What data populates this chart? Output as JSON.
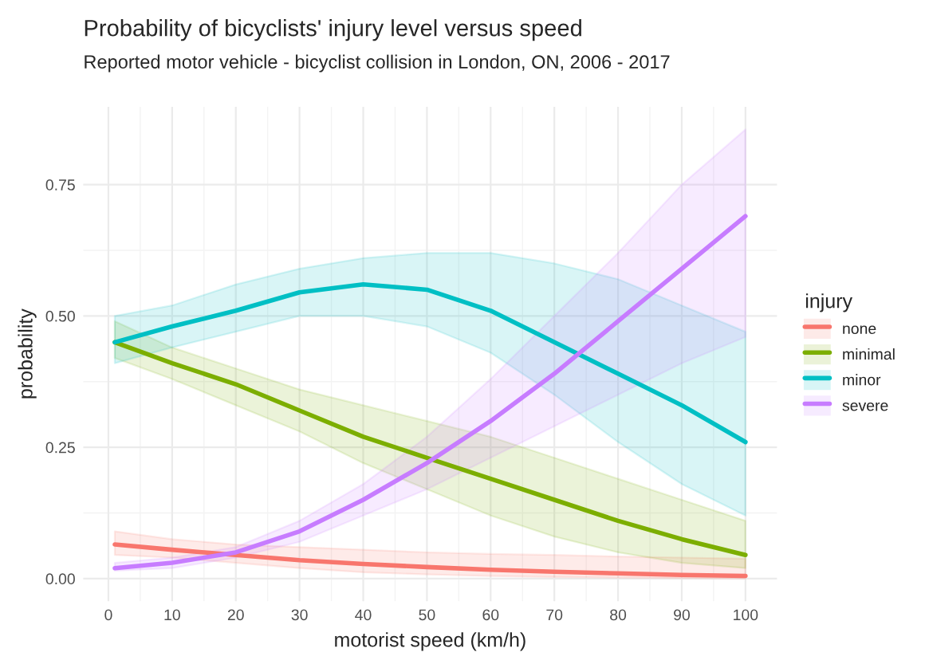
{
  "chart_data": {
    "type": "line",
    "title": "Probability of bicyclists' injury level versus speed",
    "subtitle": "Reported motor vehicle - bicyclist collision in London, ON, 2006 - 2017",
    "xlabel": "motorist speed (km/h)",
    "ylabel": "probability",
    "legend_title": "injury",
    "legend": "right",
    "grid": true,
    "x": [
      1,
      10,
      20,
      30,
      40,
      50,
      60,
      70,
      80,
      90,
      100
    ],
    "xlim": [
      -3.95,
      104.95
    ],
    "ylim": [
      -0.043,
      0.898
    ],
    "xticks": [
      0,
      10,
      20,
      30,
      40,
      50,
      60,
      70,
      80,
      90,
      100
    ],
    "yticks": [
      {
        "value": 0,
        "label": "0.00"
      },
      {
        "value": 0.25,
        "label": "0.25"
      },
      {
        "value": 0.5,
        "label": "0.50"
      },
      {
        "value": 0.75,
        "label": "0.75"
      }
    ],
    "series": [
      {
        "name": "none",
        "color": "#f8766d",
        "values": [
          0.065,
          0.055,
          0.045,
          0.035,
          0.028,
          0.022,
          0.017,
          0.013,
          0.01,
          0.007,
          0.005
        ],
        "lower": [
          0.045,
          0.04,
          0.03,
          0.02,
          0.012,
          0.008,
          0.005,
          0.003,
          0.002,
          0.001,
          0.0
        ],
        "upper": [
          0.09,
          0.075,
          0.065,
          0.06,
          0.055,
          0.05,
          0.047,
          0.045,
          0.042,
          0.04,
          0.038
        ]
      },
      {
        "name": "minimal",
        "color": "#7cae00",
        "values": [
          0.45,
          0.41,
          0.37,
          0.32,
          0.27,
          0.23,
          0.19,
          0.15,
          0.11,
          0.075,
          0.045
        ],
        "lower": [
          0.42,
          0.38,
          0.33,
          0.28,
          0.22,
          0.17,
          0.12,
          0.08,
          0.05,
          0.03,
          0.02
        ],
        "upper": [
          0.49,
          0.44,
          0.4,
          0.36,
          0.33,
          0.3,
          0.27,
          0.23,
          0.19,
          0.15,
          0.11
        ]
      },
      {
        "name": "minor",
        "color": "#00bfc4",
        "values": [
          0.45,
          0.48,
          0.51,
          0.545,
          0.56,
          0.55,
          0.51,
          0.45,
          0.39,
          0.33,
          0.26
        ],
        "lower": [
          0.41,
          0.44,
          0.47,
          0.5,
          0.5,
          0.48,
          0.43,
          0.35,
          0.26,
          0.18,
          0.12
        ],
        "upper": [
          0.5,
          0.52,
          0.56,
          0.59,
          0.61,
          0.62,
          0.62,
          0.6,
          0.57,
          0.52,
          0.47
        ]
      },
      {
        "name": "severe",
        "color": "#c77cff",
        "values": [
          0.02,
          0.03,
          0.05,
          0.09,
          0.15,
          0.22,
          0.3,
          0.39,
          0.49,
          0.59,
          0.69
        ],
        "lower": [
          0.015,
          0.02,
          0.04,
          0.07,
          0.12,
          0.17,
          0.23,
          0.29,
          0.35,
          0.41,
          0.46
        ],
        "upper": [
          0.03,
          0.04,
          0.06,
          0.11,
          0.18,
          0.27,
          0.38,
          0.5,
          0.62,
          0.75,
          0.855
        ]
      }
    ]
  }
}
